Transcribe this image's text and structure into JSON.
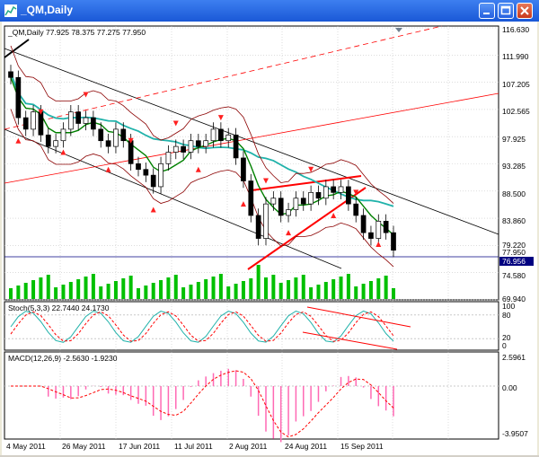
{
  "window": {
    "title": "_QM,Daily"
  },
  "colors": {
    "titlebar": "#1a58d6",
    "grid": "#c8c8c8",
    "axis_text": "#000000",
    "ma_fast": "#008000",
    "ma_slow": "#20b2aa",
    "bollinger": "#8b0000",
    "channel": "#000000",
    "trendline": "#ff0000",
    "volume": "#00c000",
    "stoch_main": "#20b2aa",
    "stoch_signal": "#ff0000",
    "macd_hist": "#ff69b4",
    "macd_signal": "#ff0000",
    "bid_line": "#000080",
    "fractal_arrow": "#ff2020"
  },
  "main_panel": {
    "legend": "_QM,Daily  77.925 78.375 77.275 77.950",
    "price_labels": [
      "116.630",
      "111.990",
      "107.205",
      "102.565",
      "97.925",
      "93.285",
      "88.500",
      "83.860",
      "79.220",
      "74.580",
      "69.940"
    ],
    "current_price_a": "77.950",
    "current_price_b": "76.956"
  },
  "stoch_panel": {
    "legend": "Stoch(5,3,3)  22.7440  24.1730",
    "levels": [
      "100",
      "80",
      "20",
      "0"
    ]
  },
  "macd_panel": {
    "legend": "MACD(12,26,9)  -2.5630  -1.9230",
    "levels": [
      "2.5961",
      "0.00",
      "-3.9507"
    ]
  },
  "x_axis": {
    "labels": [
      "4 May 2011",
      "26 May 2011",
      "17 Jun 2011",
      "11 Jul 2011",
      "2 Aug 2011",
      "24 Aug 2011",
      "15 Sep 2011"
    ]
  },
  "chart_data": {
    "type": "candlestick",
    "title": "_QM,Daily",
    "ylim": [
      69.94,
      116.63
    ],
    "x_dates": [
      "4 May 2011",
      "26 May 2011",
      "17 Jun 2011",
      "11 Jul 2011",
      "2 Aug 2011",
      "24 Aug 2011",
      "15 Sep 2011"
    ],
    "last_bar": {
      "open": 77.925,
      "high": 78.375,
      "low": 77.275,
      "close": 77.95
    },
    "close_series": [
      108,
      101,
      99,
      102,
      98,
      96,
      97,
      99,
      102,
      100,
      101,
      99,
      97,
      96,
      99,
      97,
      93,
      92,
      91,
      89,
      93,
      95,
      96,
      95,
      97,
      96,
      97,
      99,
      97,
      98,
      94,
      90,
      84,
      80,
      86,
      87,
      84,
      85,
      87,
      86,
      88,
      87,
      89,
      88,
      89,
      86,
      84,
      81,
      80,
      83,
      81,
      77.95
    ],
    "stochastic": {
      "main": 22.744,
      "signal": 24.173
    },
    "macd": {
      "main": -2.563,
      "signal": -1.923
    }
  }
}
